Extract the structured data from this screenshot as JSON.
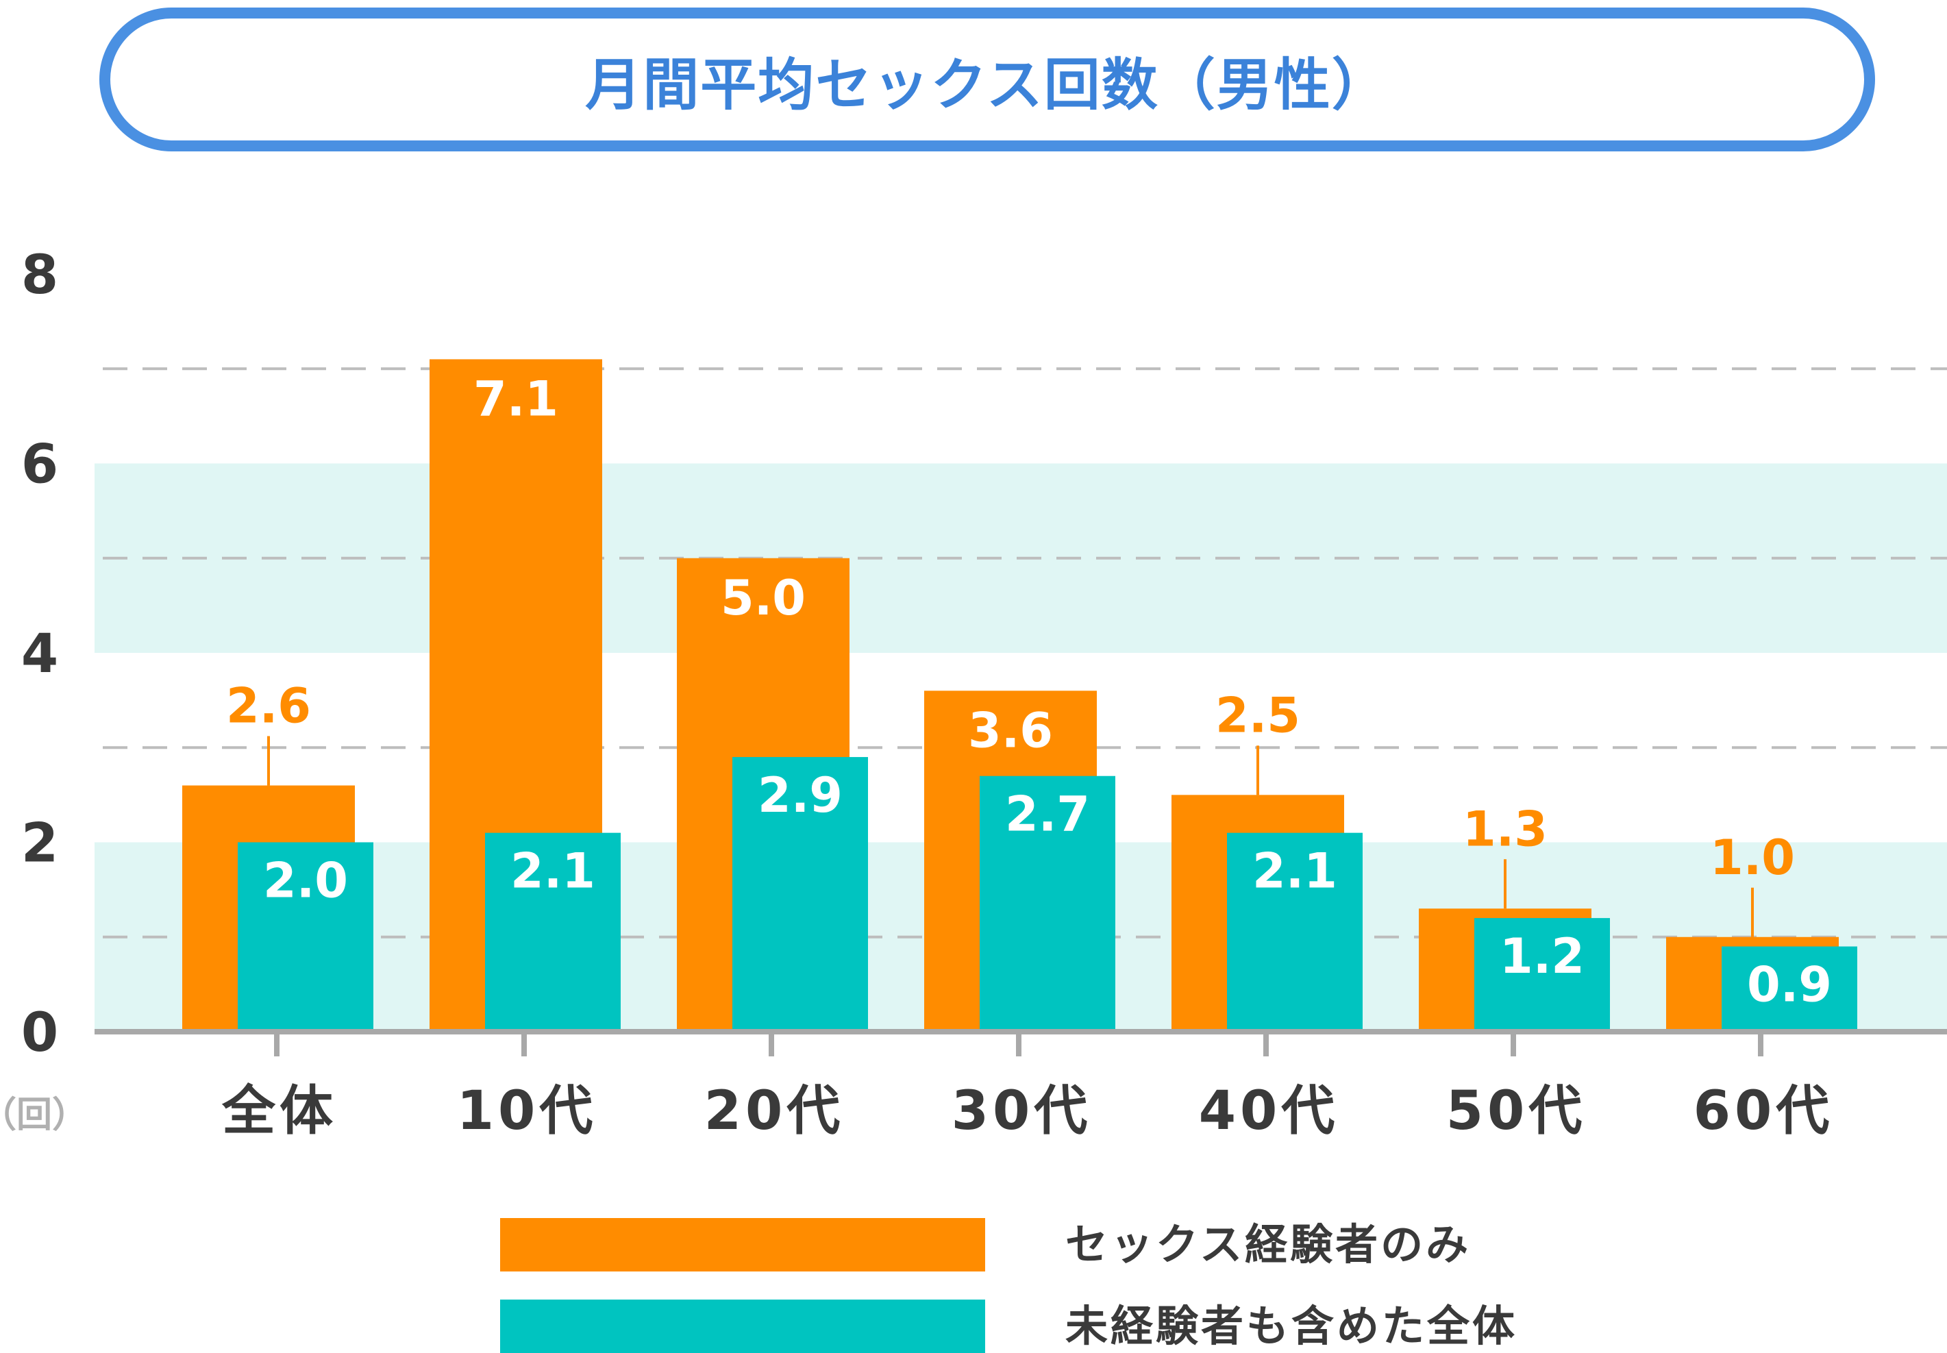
{
  "chart_data": {
    "type": "bar",
    "title": "月間平均セックス回数（男性）",
    "unit_label": "（回）",
    "categories": [
      "全体",
      "10代",
      "20代",
      "30代",
      "40代",
      "50代",
      "60代"
    ],
    "ylim": [
      0,
      8
    ],
    "yticks": [
      "0",
      "2",
      "4",
      "6",
      "8"
    ],
    "series": [
      {
        "name": "セックス経験者のみ",
        "color": "#ff8c00",
        "label_color": "#ff8c00",
        "values": [
          2.6,
          7.1,
          5.0,
          3.6,
          2.5,
          1.3,
          1.0
        ],
        "labels": [
          "2.6",
          "7.1",
          "5.0",
          "3.6",
          "2.5",
          "1.3",
          "1.0"
        ]
      },
      {
        "name": "未経験者も含めた全体",
        "color": "#00c4c0",
        "values": [
          2.0,
          2.1,
          2.9,
          2.7,
          2.1,
          1.2,
          0.9
        ],
        "labels": [
          "2.0",
          "2.1",
          "2.9",
          "2.7",
          "2.1",
          "1.2",
          "0.9"
        ]
      }
    ],
    "bands": [
      [
        0,
        2
      ],
      [
        4,
        6
      ]
    ],
    "band_color": "#e0f6f4",
    "grid": true,
    "legend_position": "bottom"
  }
}
